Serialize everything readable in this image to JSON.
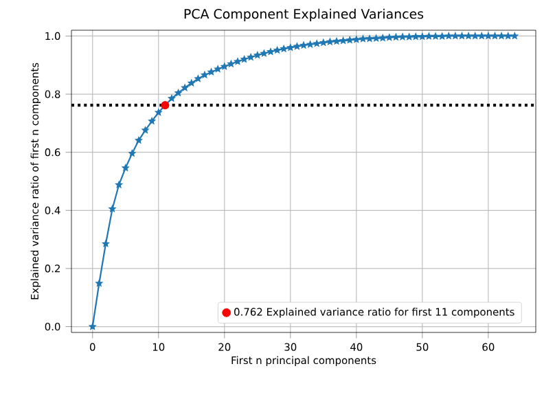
{
  "chart_data": {
    "type": "line",
    "title": "PCA Component Explained Variances",
    "xlabel": "First n principal components",
    "ylabel": "Explained variance ratio of first n components",
    "x": [
      0,
      1,
      2,
      3,
      4,
      5,
      6,
      7,
      8,
      9,
      10,
      11,
      12,
      13,
      14,
      15,
      16,
      17,
      18,
      19,
      20,
      21,
      22,
      23,
      24,
      25,
      26,
      27,
      28,
      29,
      30,
      31,
      32,
      33,
      34,
      35,
      36,
      37,
      38,
      39,
      40,
      41,
      42,
      43,
      44,
      45,
      46,
      47,
      48,
      49,
      50,
      51,
      52,
      53,
      54,
      55,
      56,
      57,
      58,
      59,
      60,
      61,
      62,
      63,
      64
    ],
    "series": [
      {
        "color": "#1f77b4",
        "marker": "star",
        "values": [
          0,
          0.149,
          0.285,
          0.405,
          0.488,
          0.546,
          0.596,
          0.641,
          0.676,
          0.707,
          0.737,
          0.762,
          0.785,
          0.804,
          0.822,
          0.838,
          0.853,
          0.866,
          0.876,
          0.886,
          0.895,
          0.904,
          0.912,
          0.92,
          0.927,
          0.934,
          0.94,
          0.946,
          0.951,
          0.956,
          0.96,
          0.964,
          0.968,
          0.971,
          0.974,
          0.977,
          0.98,
          0.982,
          0.984,
          0.986,
          0.988,
          0.99,
          0.991,
          0.992,
          0.993,
          0.995,
          0.996,
          0.997,
          0.997,
          0.998,
          0.998,
          0.999,
          0.999,
          0.999,
          1.0,
          1.0,
          1.0,
          1.0,
          1.0,
          1.0,
          1.0,
          1.0,
          1.0,
          1.0,
          1.0
        ]
      },
      {
        "type": "scatter",
        "name": "0.762 Explained variance ratio for first 11 components",
        "color": "#ff0000",
        "marker": "circle",
        "x": [
          11
        ],
        "values": [
          0.762
        ]
      }
    ],
    "ref_lines": [
      {
        "axis": "y",
        "value": 0.762,
        "color": "#000000",
        "line_style": "dotted"
      }
    ],
    "xlim": [
      -3.2,
      67.2
    ],
    "ylim": [
      -0.02,
      1.02
    ],
    "xticks": [
      0,
      10,
      20,
      30,
      40,
      50,
      60
    ],
    "yticks": [
      {
        "value": 0,
        "label": "0.0"
      },
      {
        "value": 0.2,
        "label": "0.2"
      },
      {
        "value": 0.4,
        "label": "0.4"
      },
      {
        "value": 0.6,
        "label": "0.6"
      },
      {
        "value": 0.8,
        "label": "0.8"
      },
      {
        "value": 1.0,
        "label": "1.0"
      }
    ],
    "grid": true,
    "legend": "bottom right"
  }
}
